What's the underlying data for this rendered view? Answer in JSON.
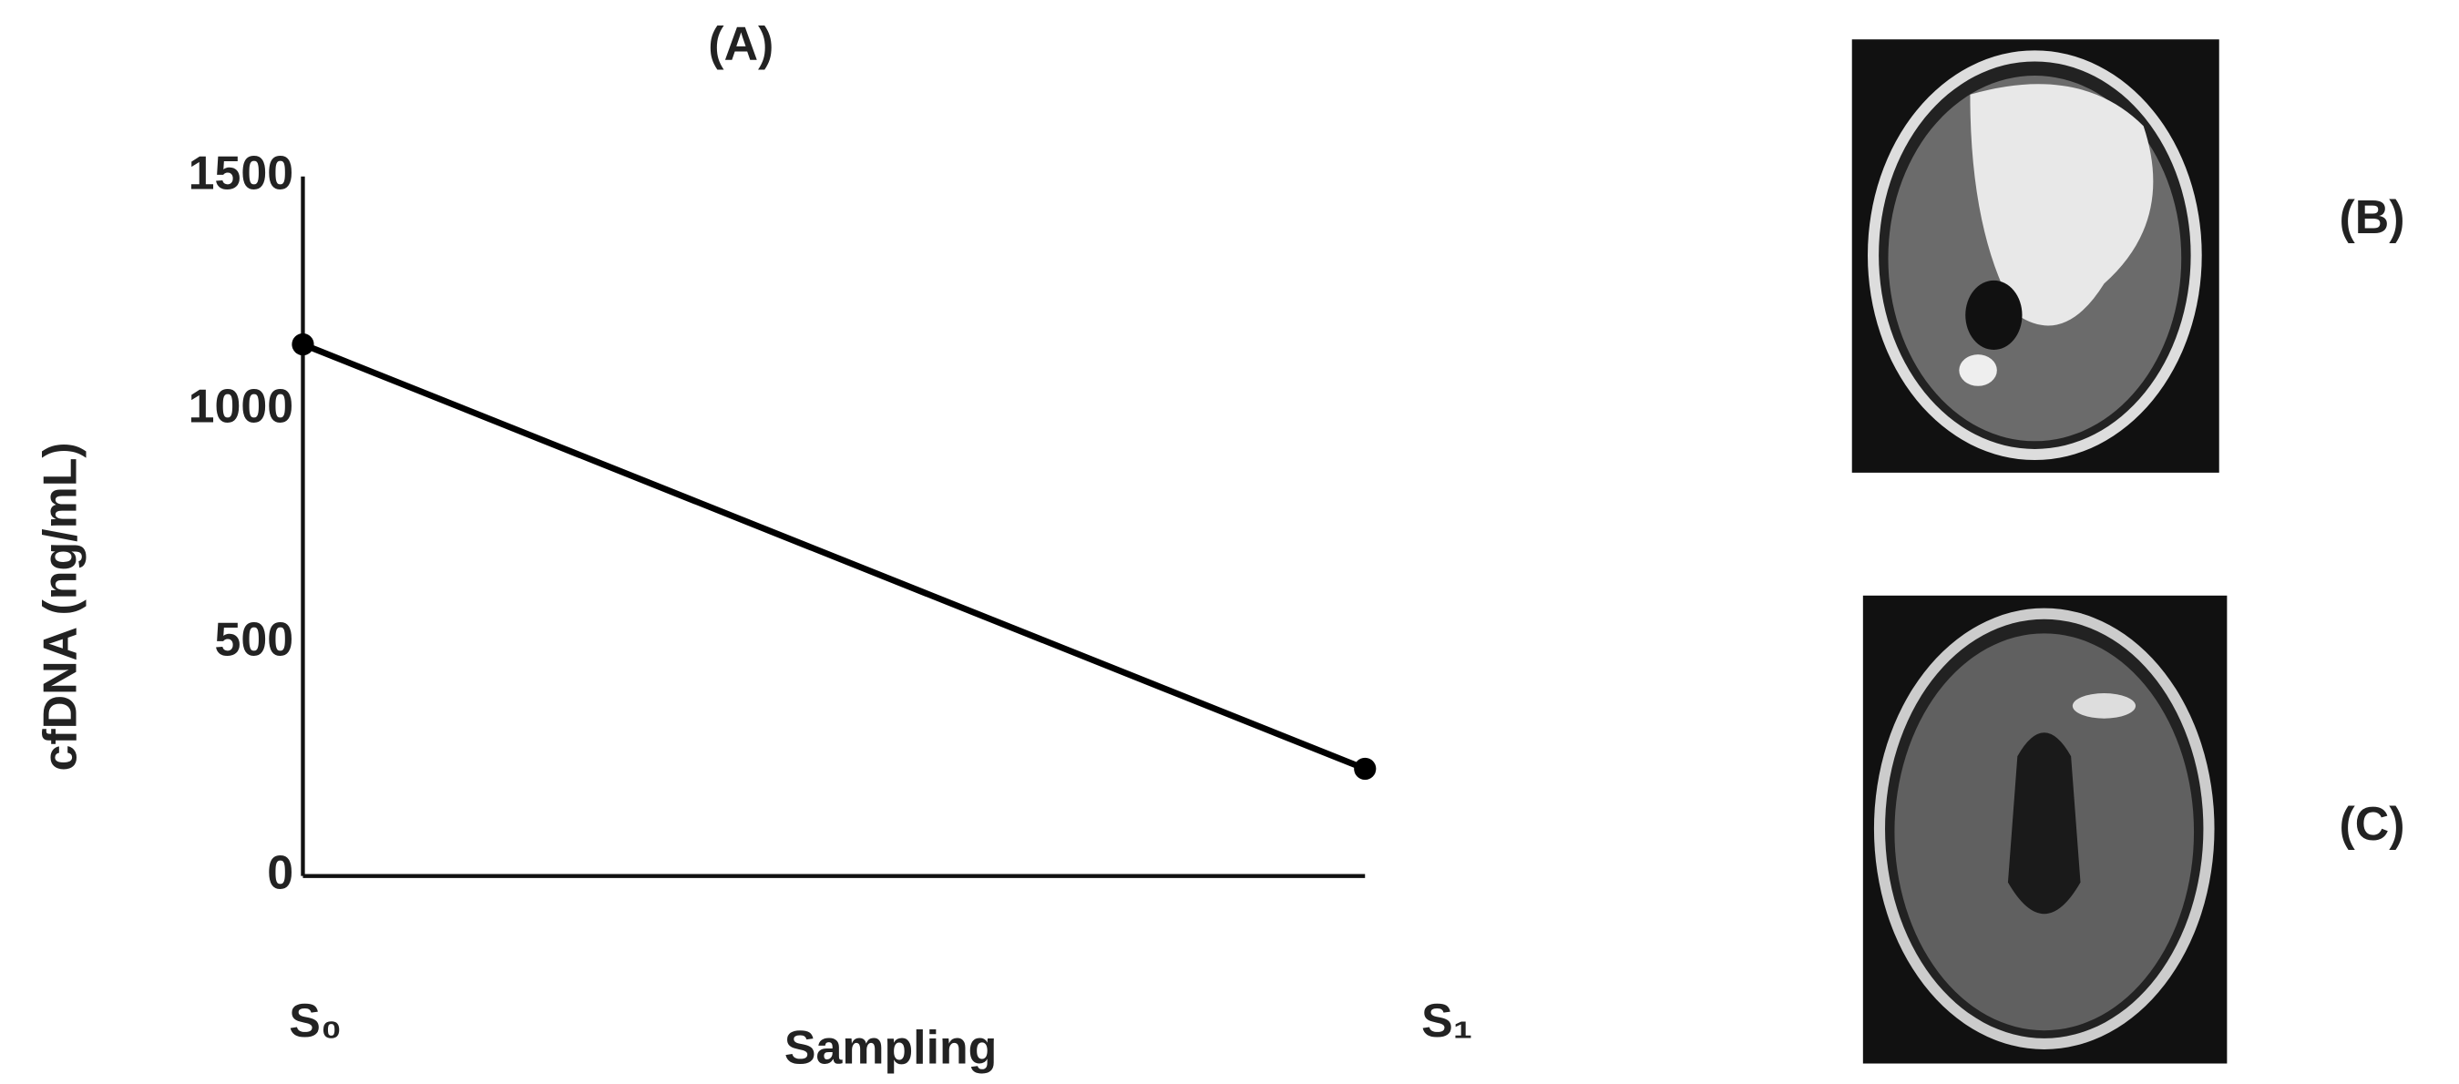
{
  "chart_data": {
    "type": "line",
    "title": "(A)",
    "x_label": "Sampling",
    "y_label": "cfDNA (ng/mL)",
    "categories": [
      "S₀",
      "S₁"
    ],
    "series": [
      {
        "color": "#000000",
        "values": [
          1140,
          230
        ]
      }
    ],
    "ylim": [
      0,
      1500
    ],
    "yticks": [
      0,
      500,
      1000,
      1500
    ],
    "grid": false
  },
  "panels": [
    {
      "label": "(B)"
    },
    {
      "label": "(C)"
    }
  ]
}
